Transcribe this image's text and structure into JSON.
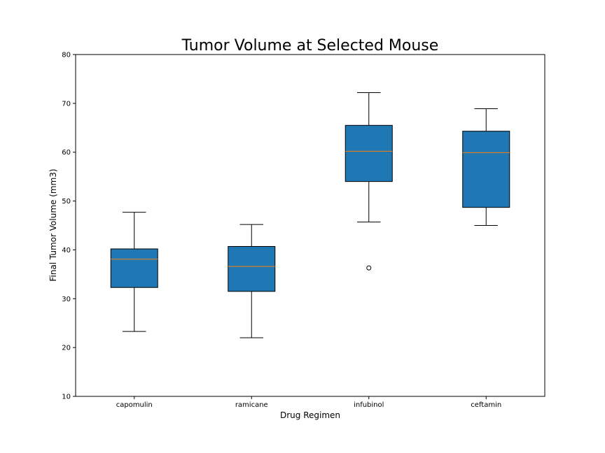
{
  "chart_data": {
    "type": "box",
    "title": "Tumor Volume at Selected Mouse",
    "xlabel": "Drug Regimen",
    "ylabel": "Final Tumor Volume (mm3)",
    "ylim": [
      10,
      80
    ],
    "yticks": [
      10,
      20,
      30,
      40,
      50,
      60,
      70,
      80
    ],
    "categories": [
      "capomulin",
      "ramicane",
      "infubinol",
      "ceftamin"
    ],
    "boxes": [
      {
        "category": "capomulin",
        "whisker_low": 23.3,
        "q1": 32.3,
        "median": 38.1,
        "q3": 40.2,
        "whisker_high": 47.7,
        "outliers": []
      },
      {
        "category": "ramicane",
        "whisker_low": 22.0,
        "q1": 31.5,
        "median": 36.6,
        "q3": 40.7,
        "whisker_high": 45.2,
        "outliers": []
      },
      {
        "category": "infubinol",
        "whisker_low": 45.7,
        "q1": 54.0,
        "median": 60.2,
        "q3": 65.5,
        "whisker_high": 72.2,
        "outliers": [
          36.3
        ]
      },
      {
        "category": "ceftamin",
        "whisker_low": 45.0,
        "q1": 48.7,
        "median": 59.9,
        "q3": 64.3,
        "whisker_high": 68.9,
        "outliers": []
      }
    ],
    "box_color": "#1f77b4",
    "median_color": "#ff7f0e",
    "grid": false,
    "legend": "none"
  }
}
